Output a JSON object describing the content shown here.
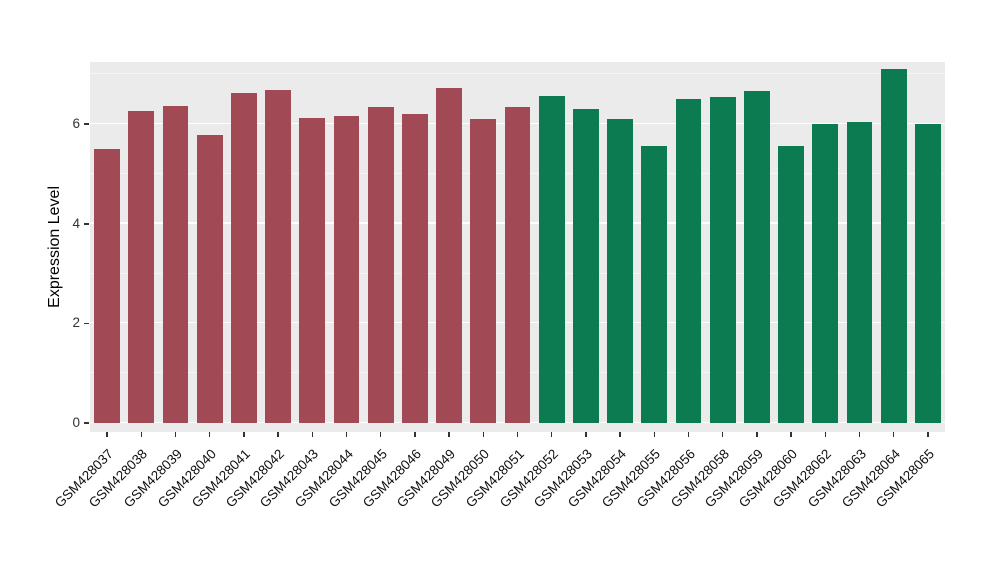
{
  "chart_data": {
    "type": "bar",
    "title": "",
    "xlabel": "",
    "ylabel": "Expression Level",
    "ylim": [
      0,
      7.25
    ],
    "yticks": [
      0,
      2,
      4,
      6
    ],
    "yticks_minor": [
      1,
      3,
      5,
      7
    ],
    "grid": "on",
    "legend": "none",
    "panel_bg": "#EBEBEB",
    "grid_color": "#FFFFFF",
    "categories": [
      "GSM428037",
      "GSM428038",
      "GSM428039",
      "GSM428040",
      "GSM428041",
      "GSM428042",
      "GSM428043",
      "GSM428044",
      "GSM428045",
      "GSM428046",
      "GSM428049",
      "GSM428050",
      "GSM428051",
      "GSM428052",
      "GSM428053",
      "GSM428054",
      "GSM428055",
      "GSM428056",
      "GSM428058",
      "GSM428059",
      "GSM428060",
      "GSM428062",
      "GSM428063",
      "GSM428064",
      "GSM428065"
    ],
    "values": [
      5.5,
      6.26,
      6.37,
      5.78,
      6.62,
      6.68,
      6.13,
      6.17,
      6.35,
      6.2,
      6.72,
      6.1,
      6.35,
      6.57,
      6.31,
      6.1,
      5.57,
      6.5,
      6.55,
      6.67,
      5.57,
      6.0,
      6.05,
      7.1,
      6.0
    ],
    "groups": [
      "group1",
      "group1",
      "group1",
      "group1",
      "group1",
      "group1",
      "group1",
      "group1",
      "group1",
      "group1",
      "group1",
      "group1",
      "group1",
      "group2",
      "group2",
      "group2",
      "group2",
      "group2",
      "group2",
      "group2",
      "group2",
      "group2",
      "group2",
      "group2",
      "group2"
    ],
    "group_colors": {
      "group1": "#A24956",
      "group2": "#0C7B52"
    }
  }
}
